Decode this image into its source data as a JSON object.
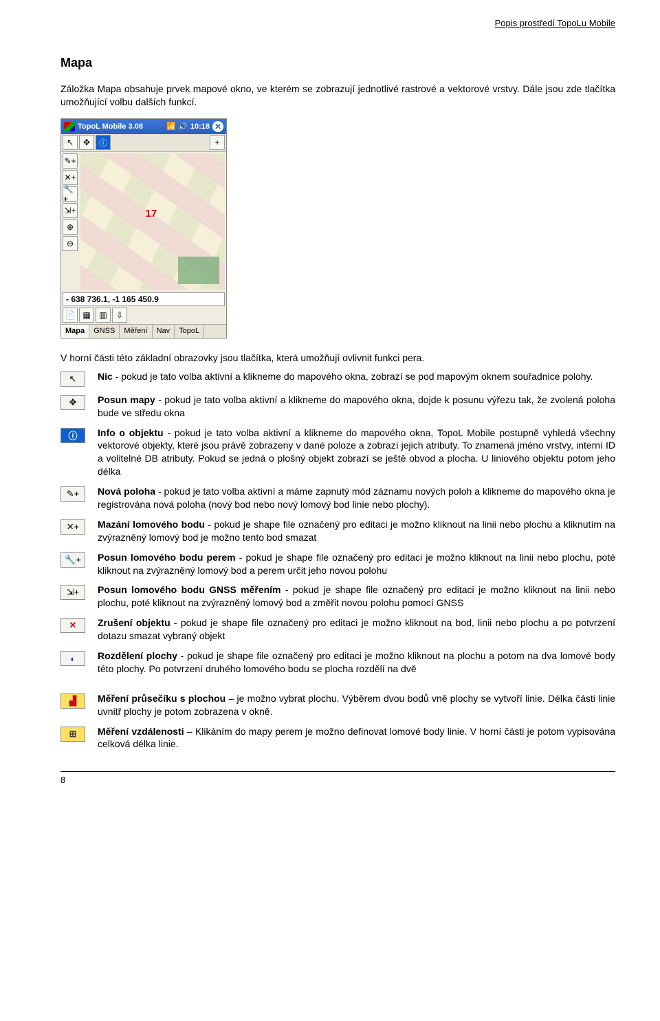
{
  "header_right": "Popis prostředí TopoLu Mobile",
  "title": "Mapa",
  "intro": "Záložka Mapa obsahuje prvek mapové okno, ve kterém se zobrazují jednotlivé rastrové a vektorové vrstvy. Dále jsou zde tlačítka umožňující volbu dalších funkcí.",
  "screenshot": {
    "titlebar_label": "TopoL Mobile 3.08",
    "titlebar_time": "10:18",
    "close_glyph": "✕",
    "map_number": "17",
    "coordinates": "- 638 736.1, -1 165 450.9",
    "tabs": [
      "Mapa",
      "GNSS",
      "Měření",
      "Nav",
      "TopoL"
    ],
    "toolbar_top": [
      "↖",
      "✥",
      "ⓘ",
      "—",
      "+"
    ],
    "toolbar_side": [
      "✎+",
      "✕+",
      "🔧+",
      "⇲+",
      "⊕",
      "⊖"
    ],
    "toolbar_bottom": [
      "📄",
      "▦",
      "▥",
      "⇩"
    ],
    "colors": {
      "titlebar_bg": "#2a5fbf",
      "map_bg": "#f7f0d8",
      "green_block": "#7faf7f",
      "toolbar_bg": "#e8e4d8"
    }
  },
  "intro2": "V horní části této základní obrazovky jsou tlačítka, která umožňují ovlivnit funkci pera.",
  "items": [
    {
      "icon": "cursor",
      "bold": "Nic",
      "text": " - pokud je tato volba aktivní a klikneme do mapového okna, zobrazí se pod mapovým oknem souřadnice polohy."
    },
    {
      "icon": "move",
      "bold": "Posun mapy",
      "text": " - pokud je tato volba aktivní a klikneme do mapového okna, dojde k posunu výřezu tak, že zvolená poloha bude ve středu okna"
    },
    {
      "icon": "info",
      "bold": "Info o objektu",
      "text": " - pokud je tato volba aktivní a klikneme do mapového okna, TopoL Mobile postupně vyhledá všechny vektorové objekty, které jsou právě zobrazeny v dané poloze a zobrazí jejich atributy. To znamená jméno vrstvy, interní ID a volitelné DB atributy. Pokud se jedná o plošný objekt zobrazí se ještě obvod a plocha. U liniového objektu potom jeho délka"
    },
    {
      "icon": "pencil-plus",
      "bold": "Nová poloha",
      "text": " - pokud je tato volba aktivní a máme zapnutý mód záznamu nových poloh a klikneme do mapového okna je registrována nová poloha (nový bod nebo nový lomový bod linie nebo plochy)."
    },
    {
      "icon": "x-plus",
      "bold": "Mazání lomového bodu",
      "text": " - pokud je shape file označený pro editaci je možno kliknout na linii nebo plochu a kliknutím na zvýrazněný lomový bod je možno tento bod smazat"
    },
    {
      "icon": "wrench-plus",
      "bold": "Posun lomového bodu perem",
      "text": " - pokud je shape file označený pro editaci je možno kliknout na linii nebo plochu, poté kliknout na zvýrazněný lomový bod a perem určit jeho novou polohu"
    },
    {
      "icon": "sat-plus",
      "bold": "Posun lomového bodu GNSS měřením",
      "text": " - pokud je shape file označený pro editaci je možno kliknout na linii nebo plochu, poté kliknout na zvýrazněný lomový bod a změřit novou polohu pomocí GNSS"
    },
    {
      "icon": "x-red",
      "bold": "Zrušení objektu",
      "text": " - pokud je shape file označený pro editaci je možno kliknout na bod, linii nebo plochu a po potvrzení dotazu smazat vybraný objekt"
    },
    {
      "icon": "split",
      "bold": "Rozdělení plochy",
      "text": " - pokud je shape file označený pro editaci je možno kliknout na plochu a potom na dva lomové body této plochy. Po potvrzení druhého lomového bodu se plocha rozdělí na dvě"
    }
  ],
  "items2": [
    {
      "icon": "intersection",
      "bold": "Měření průsečíku s plochou",
      "text": " – je možno vybrat plochu. Výběrem dvou bodů vně plochy se vytvoří linie. Délka části linie uvnitř plochy je potom zobrazena v okně."
    },
    {
      "icon": "ruler",
      "bold": "Měření vzdálenosti",
      "text": " – Klikáním do mapy perem je možno definovat lomové body linie. V horní části je potom vypisována celková délka linie."
    }
  ],
  "page_number": "8",
  "icon_glyphs": {
    "cursor": "↖",
    "move": "✥",
    "info": "ⓘ",
    "pencil-plus": "✎+",
    "x-plus": "✕+",
    "wrench-plus": "🔧+",
    "sat-plus": "⇲+",
    "x-red": "✕",
    "split": "◐",
    "intersection": "▟",
    "ruler": "⊞"
  },
  "icon_colors": {
    "info": {
      "fg": "#ffffff",
      "bg": "#1060d0"
    },
    "x-red": {
      "fg": "#d01020",
      "bg": "#f4f4f0"
    },
    "split": {
      "fg": "#1040c0",
      "bg": "#f4f4f0"
    },
    "intersection": {
      "fg": "#c01020",
      "bg": "#ffe060"
    },
    "ruler": {
      "fg": "#404040",
      "bg": "#ffe060"
    }
  }
}
